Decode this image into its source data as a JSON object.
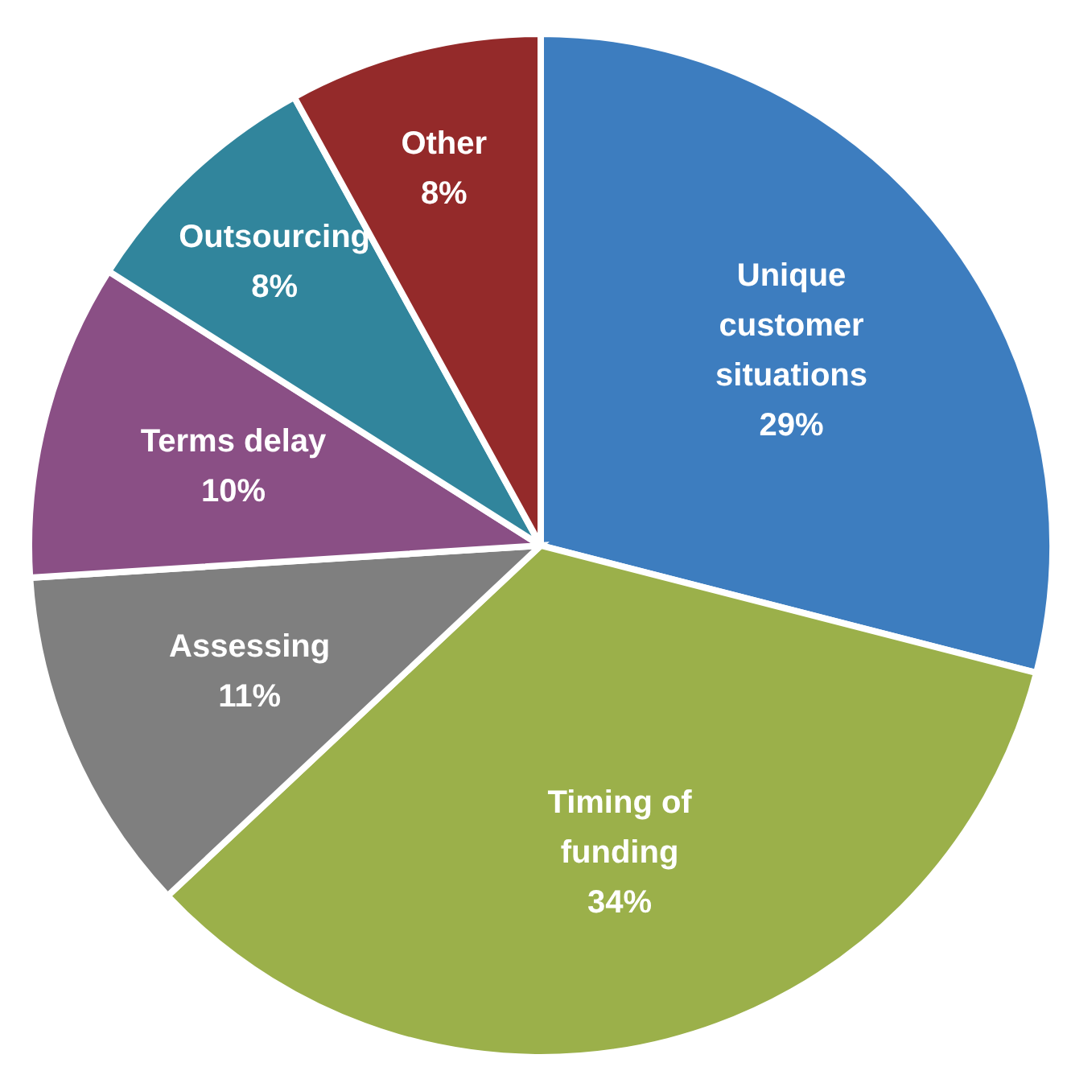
{
  "chart_data": {
    "type": "pie",
    "categories": [
      "Unique customer situations",
      "Timing of funding",
      "Assessing",
      "Terms delay",
      "Outsourcing",
      "Other"
    ],
    "values": [
      29,
      34,
      11,
      10,
      8,
      8
    ],
    "colors": [
      "#3d7dbf",
      "#9bb04a",
      "#7f7f7f",
      "#8a4f85",
      "#31859c",
      "#942a2a"
    ],
    "value_labels": [
      "29%",
      "34%",
      "11%",
      "10%",
      "8%",
      "8%"
    ]
  }
}
